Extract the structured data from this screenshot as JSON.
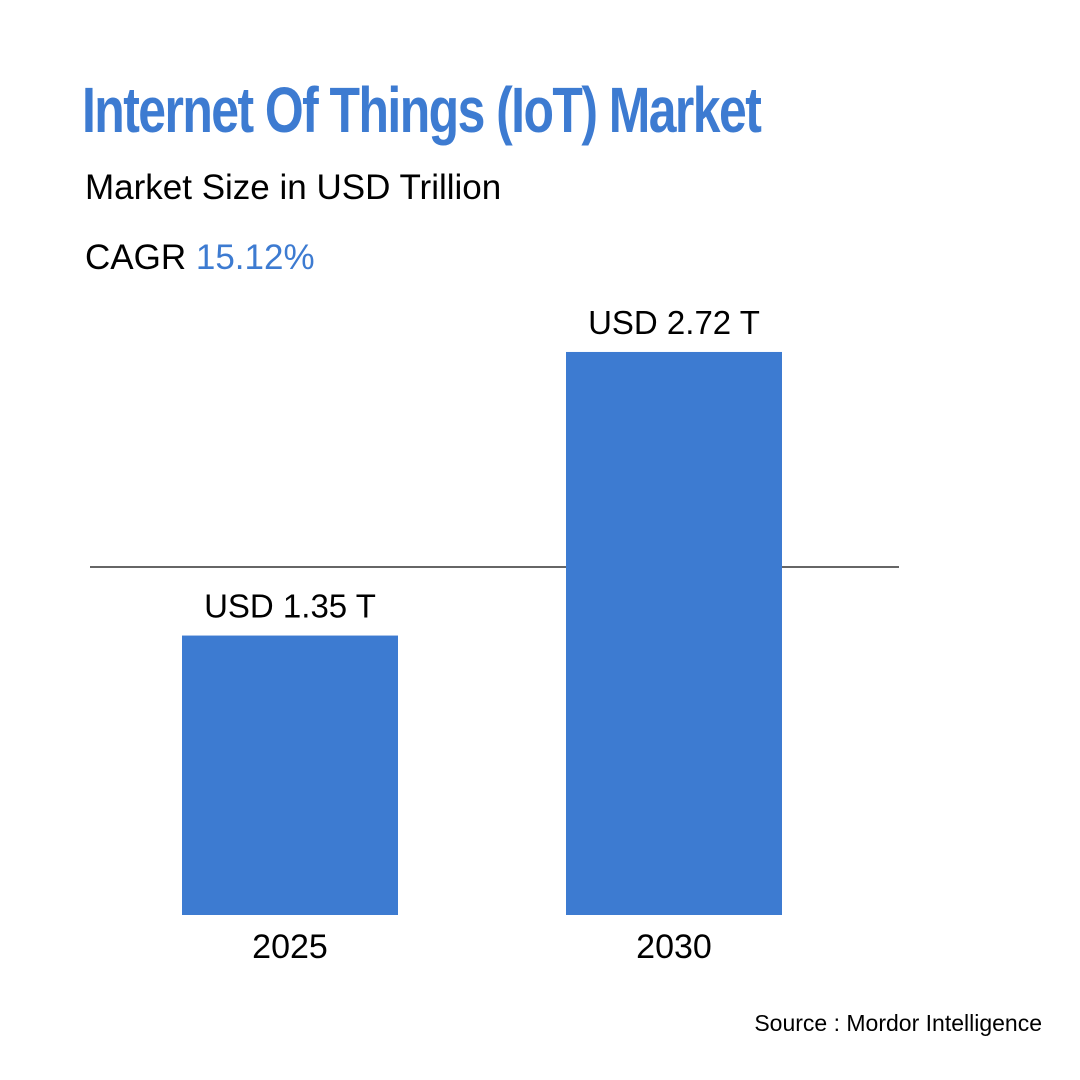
{
  "title": "Internet Of Things (IoT) Market",
  "subtitle": "Market Size in USD Trillion",
  "cagr_label": "CAGR",
  "cagr_value": "15.12%",
  "source": "Source : Mordor Intelligence",
  "colors": {
    "accent": "#3d7bd1",
    "bar": "#3d7bd1",
    "text": "#000000",
    "baseline": "#333333"
  },
  "chart_data": {
    "type": "bar",
    "categories": [
      "2025",
      "2030"
    ],
    "values": [
      1.35,
      2.72
    ],
    "value_labels": [
      "USD 1.35 T",
      "USD 2.72 T"
    ],
    "title": "Internet Of Things (IoT) Market",
    "subtitle": "Market Size in USD Trillion",
    "xlabel": "",
    "ylabel": "",
    "grid": false,
    "legend": "none"
  }
}
